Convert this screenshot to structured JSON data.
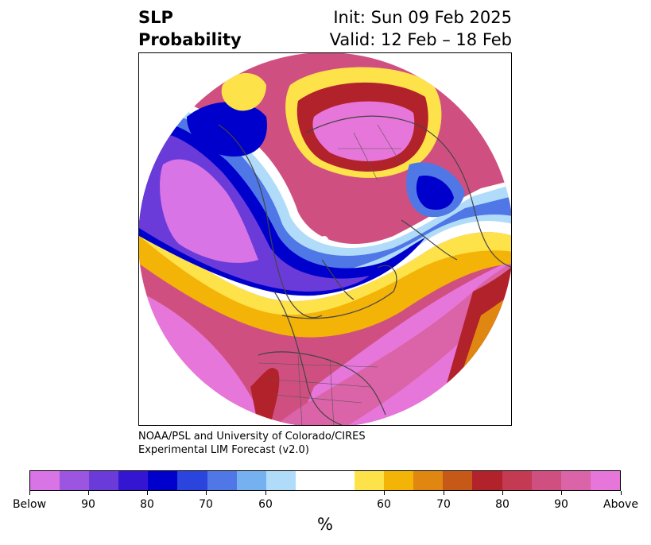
{
  "header": {
    "title_line1": "SLP",
    "title_line2": "Probability",
    "init": "Init: Sun 09 Feb 2025",
    "valid": "Valid: 12 Feb – 18 Feb"
  },
  "credit": {
    "line1": "NOAA/PSL and University of Colorado/CIRES",
    "line2": "Experimental LIM Forecast (v2.0)"
  },
  "colorbar": {
    "colors": [
      "#d874e6",
      "#9c55e0",
      "#6b3bd9",
      "#3416d2",
      "#0000cc",
      "#2a44dd",
      "#5077e6",
      "#75b1f0",
      "#b0dcfa",
      "#ffffff",
      "#ffffff",
      "#fee24a",
      "#f3b307",
      "#df8710",
      "#c65918",
      "#b2222a",
      "#c33a52",
      "#cf5080",
      "#db63a8",
      "#e676d9"
    ],
    "ticks": [
      "Below",
      "90",
      "80",
      "70",
      "60",
      "60",
      "70",
      "80",
      "90",
      "Above"
    ],
    "unit": "%"
  },
  "legend_colors": {
    "below_strong": "#e676d9",
    "below_blue": "#0000cc",
    "above_yellow": "#fee24a",
    "above_red": "#b2222a",
    "above_pink": "#e676d9"
  }
}
